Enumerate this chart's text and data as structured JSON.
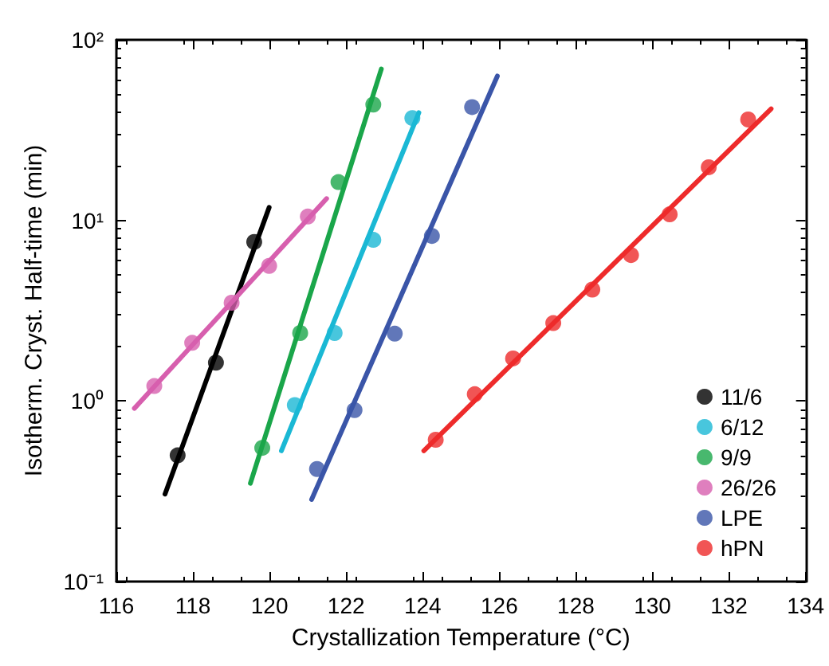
{
  "chart_data": {
    "type": "scatter",
    "xlabel": "Crystallization Temperature (°C)",
    "ylabel": "Isotherm. Cryst. Half-time (min)",
    "xlim": [
      116,
      134
    ],
    "xticks": [
      116,
      118,
      120,
      122,
      124,
      126,
      128,
      130,
      132,
      134
    ],
    "ylim": [
      0.1,
      100
    ],
    "yticks": [
      {
        "value": 0.1,
        "label": "10⁻¹"
      },
      {
        "value": 1,
        "label": "10⁰"
      },
      {
        "value": 10,
        "label": "10¹"
      },
      {
        "value": 100,
        "label": "10²"
      }
    ],
    "log": "y",
    "grid": false,
    "legend": "bottom right",
    "marker": "circle",
    "series": [
      {
        "name": "11/6",
        "color": "#000000",
        "x": [
          117.6,
          118.6,
          119.6
        ],
        "values": [
          0.5,
          1.63,
          7.6
        ]
      },
      {
        "name": "6/12",
        "color": "#1ab8d4",
        "x": [
          120.66,
          121.7,
          122.71,
          123.73
        ],
        "values": [
          0.95,
          2.38,
          7.8,
          36.9
        ]
      },
      {
        "name": "9/9",
        "color": "#1aa64a",
        "x": [
          119.81,
          120.8,
          121.8,
          122.71
        ],
        "values": [
          0.55,
          2.38,
          16.3,
          43.8
        ]
      },
      {
        "name": "26/26",
        "color": "#d75fae",
        "x": [
          116.99,
          117.98,
          119.01,
          119.99,
          121.0
        ],
        "values": [
          1.21,
          2.1,
          3.5,
          5.6,
          10.5
        ]
      },
      {
        "name": "LPE",
        "color": "#3a55a8",
        "x": [
          121.24,
          122.22,
          123.27,
          124.24,
          125.29
        ],
        "values": [
          0.42,
          0.89,
          2.36,
          8.2,
          42.4
        ]
      },
      {
        "name": "hPN",
        "color": "#ee2b2b",
        "x": [
          124.34,
          125.36,
          126.36,
          127.41,
          128.43,
          129.44,
          130.45,
          131.47,
          132.5
        ],
        "values": [
          0.61,
          1.09,
          1.72,
          2.7,
          4.14,
          6.43,
          10.8,
          19.7,
          36.2
        ]
      },
      {
        "type": "line",
        "marker": "none",
        "color": "#000000",
        "x": [
          117.27,
          119.99
        ],
        "values": [
          0.305,
          11.8
        ]
      },
      {
        "type": "line",
        "marker": "none",
        "color": "#1ab8d4",
        "x": [
          120.31,
          123.9
        ],
        "values": [
          0.53,
          39.5
        ]
      },
      {
        "type": "line",
        "marker": "none",
        "color": "#1aa64a",
        "x": [
          119.5,
          122.92
        ],
        "values": [
          0.35,
          68.9
        ]
      },
      {
        "type": "line",
        "marker": "none",
        "color": "#d75fae",
        "x": [
          116.47,
          121.49
        ],
        "values": [
          0.91,
          13.2
        ]
      },
      {
        "type": "line",
        "marker": "none",
        "color": "#3a55a8",
        "x": [
          121.1,
          125.95
        ],
        "values": [
          0.285,
          63
        ]
      },
      {
        "type": "line",
        "marker": "none",
        "color": "#ee2b2b",
        "x": [
          124.03,
          133.1
        ],
        "values": [
          0.53,
          41.5
        ]
      }
    ]
  }
}
